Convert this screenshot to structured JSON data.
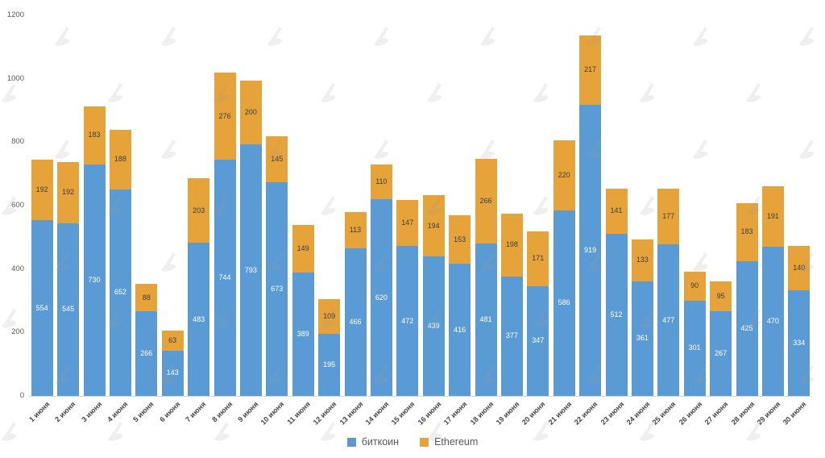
{
  "chart_data": {
    "type": "bar",
    "stacked": true,
    "title": "",
    "xlabel": "",
    "ylabel": "",
    "categories": [
      "1 июня",
      "2 июня",
      "3 июня",
      "4 июня",
      "5 июня",
      "6 июня",
      "7 июня",
      "8 июня",
      "9 июня",
      "10 июня",
      "11 июня",
      "12 июня",
      "13 июня",
      "14 июня",
      "15 июня",
      "16 июня",
      "17 июня",
      "18 июня",
      "19 июня",
      "20 июня",
      "21 июня",
      "22 июня",
      "23 июня",
      "24 июня",
      "25 июня",
      "26 июня",
      "27 июня",
      "28 июня",
      "29 июня",
      "30 июня"
    ],
    "series": [
      {
        "name": "биткоин",
        "color": "#5B9BD5",
        "label_color": "#ffffff",
        "values": [
          554,
          545,
          730,
          652,
          266,
          143,
          483,
          744,
          793,
          673,
          389,
          195,
          466,
          620,
          472,
          439,
          416,
          481,
          377,
          347,
          586,
          919,
          512,
          361,
          477,
          301,
          267,
          425,
          470,
          334
        ]
      },
      {
        "name": "Ethereum",
        "color": "#E6A33A",
        "label_color": "#3e3e3e",
        "values": [
          192,
          192,
          183,
          188,
          88,
          63,
          203,
          276,
          200,
          145,
          149,
          109,
          113,
          110,
          147,
          194,
          153,
          266,
          198,
          171,
          220,
          217,
          141,
          133,
          177,
          90,
          95,
          183,
          191,
          140
        ]
      }
    ],
    "ylim": [
      0,
      1200
    ],
    "yticks": [
      0,
      200,
      400,
      600,
      800,
      1000,
      1200
    ],
    "grid": false,
    "legend_position": "bottom",
    "x_tick_rotation": -45,
    "data_labels": true
  },
  "legend": {
    "items": [
      {
        "label": "биткоин",
        "color": "#5B9BD5"
      },
      {
        "label": "Ethereum",
        "color": "#E6A33A"
      }
    ]
  },
  "watermark": {
    "icon": "forklog-logo-icon",
    "color": "rgba(155,155,155,0.16)"
  }
}
